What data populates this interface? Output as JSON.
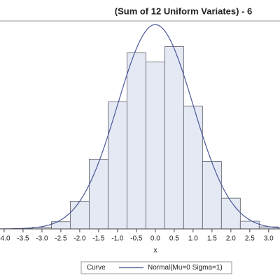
{
  "chart_data": {
    "type": "histogram",
    "title": "(Sum of 12 Uniform Variates) - 6",
    "x_label": "x",
    "bins": [
      -3.75,
      -3.25,
      -2.75,
      -2.25,
      -1.75,
      -1.25,
      -0.75,
      -0.25,
      0.25,
      0.75,
      1.25,
      1.75,
      2.25,
      2.75,
      3.25
    ],
    "values": [
      0.05,
      0.15,
      0.7,
      2.7,
      6.8,
      12.4,
      17.2,
      16.3,
      17.8,
      12.0,
      6.6,
      3.0,
      0.75,
      0.2
    ],
    "color": "#e4e9f4",
    "edge_color": "#5a5a66",
    "xlim": [
      -4.11,
      3.3
    ],
    "ylim": [
      0,
      20.3
    ],
    "xticks": [
      {
        "value": -4,
        "label": "-4.0"
      },
      {
        "value": -3.5,
        "label": "-3.5"
      },
      {
        "value": -3,
        "label": "-3.0"
      },
      {
        "value": -2.5,
        "label": "-2.5"
      },
      {
        "value": -2,
        "label": "-2.0"
      },
      {
        "value": -1.5,
        "label": "-1.5"
      },
      {
        "value": -1,
        "label": "-1.0"
      },
      {
        "value": -0.5,
        "label": "-0.5"
      },
      {
        "value": 0,
        "label": "0.0"
      },
      {
        "value": 0.5,
        "label": "0.5"
      },
      {
        "value": 1,
        "label": "1.0"
      },
      {
        "value": 1.5,
        "label": "1.5"
      },
      {
        "value": 2,
        "label": "2.0"
      },
      {
        "value": 2.5,
        "label": "2.5"
      },
      {
        "value": 3,
        "label": "3.0"
      }
    ],
    "curve": {
      "name": "Normal(Mu=0 Sigma=1)",
      "mu": 0,
      "sigma": 1,
      "color": "#4a5899"
    },
    "legend_title": "Curve"
  }
}
